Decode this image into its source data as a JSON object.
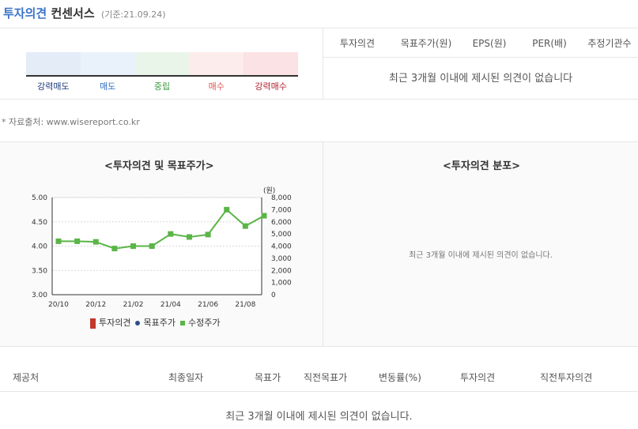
{
  "header": {
    "title_prefix": "투자의견",
    "title_suffix": "컨센서스",
    "date": "(기준:21.09.24)"
  },
  "consensus": {
    "gauge_labels": [
      "강력매도",
      "매도",
      "중립",
      "매수",
      "강력매수"
    ],
    "gauge_label_colors": [
      "#1f3a7a",
      "#2f6fc0",
      "#3a9a3a",
      "#e05050",
      "#b01e2e"
    ],
    "gauge_fill_colors": [
      "#e4ecf7",
      "#e9f2fb",
      "#eaf5ea",
      "#fdecec",
      "#fbe2e4"
    ],
    "columns": [
      "투자의견",
      "목표주가(원)",
      "EPS(원)",
      "PER(배)",
      "추정기관수"
    ],
    "empty_message": "최근 3개월 이내에 제시된 의견이 없습니다"
  },
  "source_note": "* 자료출처: www.wisereport.co.kr",
  "opinion_chart": {
    "title": "<투자의견 및 목표주가>",
    "legend": [
      {
        "label": "투자의견",
        "color": "#c0392b"
      },
      {
        "label": "목표주가",
        "color": "#2c4f8a"
      },
      {
        "label": "수정주가",
        "color": "#5bb548"
      }
    ]
  },
  "distribution": {
    "title": "<투자의견 분포>",
    "empty_message": "최근 3개월 이내에 제시된 의견이 없습니다."
  },
  "table": {
    "columns": [
      "제공처",
      "최종일자",
      "목표가",
      "직전목표가",
      "변동률(%)",
      "투자의견",
      "직전투자의견"
    ],
    "empty_message": "최근 3개월 이내에 제시된 의견이 없습니다."
  },
  "chart_data": {
    "type": "line",
    "title": "",
    "x_tick_labels": [
      "20/10",
      "20/12",
      "21/02",
      "21/04",
      "21/06",
      "21/08"
    ],
    "y_left": {
      "label": "",
      "ticks": [
        "3.00",
        "3.50",
        "4.00",
        "4.50",
        "5.00"
      ],
      "lim": [
        3.0,
        5.0
      ]
    },
    "y_right": {
      "label": "(원)",
      "ticks": [
        "0",
        "1,000",
        "2,000",
        "3,000",
        "4,000",
        "5,000",
        "6,000",
        "7,000",
        "8,000"
      ],
      "lim": [
        0,
        8000
      ]
    },
    "grid": true,
    "legend_position": "bottom",
    "series": [
      {
        "name": "수정주가",
        "axis": "right",
        "color": "#5bb548",
        "x": [
          "2020-10",
          "2020-11",
          "2020-12",
          "2021-01",
          "2021-02",
          "2021-03",
          "2021-04",
          "2021-05",
          "2021-06",
          "2021-07",
          "2021-08",
          "2021-09"
        ],
        "values": [
          4400,
          4400,
          4350,
          3800,
          4000,
          4000,
          5000,
          4750,
          4950,
          7000,
          5650,
          6500
        ]
      }
    ]
  }
}
